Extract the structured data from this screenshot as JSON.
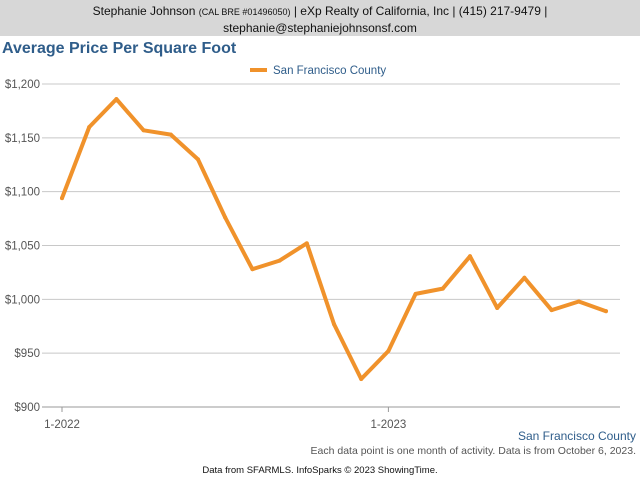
{
  "header": {
    "name": "Stephanie Johnson",
    "license": "(CAL BRE #01496050)",
    "company_phone": "| eXp Realty of California, Inc | (415) 217-9479 |",
    "email": "stephanie@stephaniejohnsonsf.com"
  },
  "footer": {
    "note": "Each data point is one month of activity. Data is from October 6, 2023.",
    "credit": "Data from SFARMLS. InfoSparks © 2023 ShowingTime."
  },
  "colors": {
    "series": "#f0922b",
    "title": "#2f5d8a",
    "grid": "#c8c8c8"
  },
  "chart_data": {
    "type": "line",
    "title": "Average Price Per Square Foot",
    "series_label": "San Francisco County",
    "legend_position": "top-center",
    "xlabel": "",
    "ylabel": "",
    "ylim": [
      900,
      1200
    ],
    "yticks": [
      900,
      950,
      1000,
      1050,
      1100,
      1150,
      1200
    ],
    "ytick_labels": [
      "$900",
      "$950",
      "$1,000",
      "$1,050",
      "$1,100",
      "$1,150",
      "$1,200"
    ],
    "xtick_labels": [
      {
        "index": 0,
        "label": "1-2022"
      },
      {
        "index": 12,
        "label": "1-2023"
      }
    ],
    "x": [
      "2022-01",
      "2022-02",
      "2022-03",
      "2022-04",
      "2022-05",
      "2022-06",
      "2022-07",
      "2022-08",
      "2022-09",
      "2022-10",
      "2022-11",
      "2022-12",
      "2023-01",
      "2023-02",
      "2023-03",
      "2023-04",
      "2023-05",
      "2023-06",
      "2023-07",
      "2023-08",
      "2023-09"
    ],
    "series": [
      {
        "name": "San Francisco County",
        "values": [
          1094,
          1160,
          1186,
          1157,
          1153,
          1130,
          1076,
          1028,
          1036,
          1052,
          977,
          926,
          952,
          1005,
          1010,
          1040,
          992,
          1020,
          990,
          998,
          989
        ]
      }
    ]
  }
}
